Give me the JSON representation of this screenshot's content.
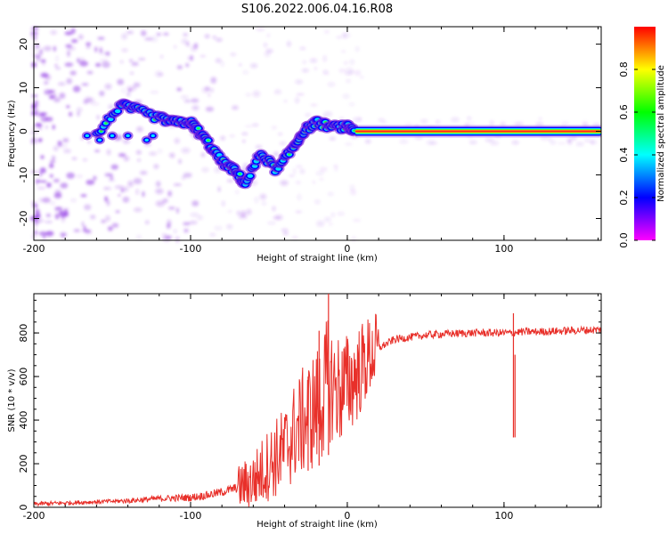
{
  "title": "S106.2022.006.04.16.R08",
  "colors": {
    "snr_line": "#e8302a",
    "frame": "#000000",
    "spectrum_ridge": [
      "#ff2020",
      "#ffe000",
      "#30ff30",
      "#00e0ff",
      "#0000ff"
    ],
    "cloud": "#8a2be2"
  },
  "chart_data": [
    {
      "type": "heatmap",
      "name": "spectrogram",
      "xlabel": "Height of straight line (km)",
      "ylabel": "Frequency (Hz)",
      "xlim": [
        -200,
        162
      ],
      "ylim": [
        -25,
        24
      ],
      "x_ticks": [
        -200,
        -100,
        0,
        100
      ],
      "y_ticks": [
        20,
        10,
        0,
        -10,
        -20
      ],
      "colorbar": {
        "label": "Normalized spectral amplitude",
        "range": [
          0,
          1
        ],
        "ticks": [
          "0.0",
          "0.2",
          "0.4",
          "0.6",
          "0.8"
        ],
        "tick_values": [
          0,
          0.2,
          0.4,
          0.6,
          0.8
        ],
        "stops": [
          "#ff00ff",
          "#8000ff",
          "#0000ff",
          "#0080ff",
          "#00ffff",
          "#00ff80",
          "#00ff00",
          "#80ff00",
          "#ffff00",
          "#ff8000",
          "#ff0000"
        ]
      },
      "ridge": [
        {
          "x": -160,
          "y": -1
        },
        {
          "x": -145,
          "y": 6
        },
        {
          "x": -135,
          "y": 5
        },
        {
          "x": -120,
          "y": 3
        },
        {
          "x": -110,
          "y": 2
        },
        {
          "x": -100,
          "y": 2
        },
        {
          "x": -95,
          "y": 0
        },
        {
          "x": -88,
          "y": -3
        },
        {
          "x": -80,
          "y": -7
        },
        {
          "x": -72,
          "y": -9
        },
        {
          "x": -65,
          "y": -12
        },
        {
          "x": -55,
          "y": -5
        },
        {
          "x": -45,
          "y": -9
        },
        {
          "x": -35,
          "y": -4
        },
        {
          "x": -28,
          "y": 0
        },
        {
          "x": -20,
          "y": 2
        },
        {
          "x": -10,
          "y": 1
        },
        {
          "x": 0,
          "y": 1
        },
        {
          "x": 5,
          "y": 0
        },
        {
          "x": 160,
          "y": 0
        }
      ]
    },
    {
      "type": "line",
      "name": "snr",
      "xlabel": "Height of straight line (km)",
      "ylabel": "SNR (10 * v/v)",
      "xlim": [
        -200,
        162
      ],
      "ylim": [
        0,
        980
      ],
      "x_ticks": [
        -200,
        -100,
        0,
        100
      ],
      "y_ticks": [
        0,
        200,
        400,
        600,
        800
      ],
      "x": [
        -200,
        -180,
        -160,
        -140,
        -120,
        -100,
        -90,
        -80,
        -70,
        -60,
        -50,
        -40,
        -35,
        -30,
        -25,
        -20,
        -15,
        -12,
        -10,
        -5,
        0,
        5,
        10,
        15,
        20,
        25,
        30,
        40,
        50,
        60,
        80,
        100,
        105,
        110,
        120,
        140,
        162
      ],
      "values": [
        15,
        20,
        25,
        30,
        40,
        45,
        55,
        70,
        90,
        120,
        200,
        260,
        330,
        380,
        420,
        450,
        520,
        600,
        560,
        540,
        560,
        600,
        650,
        700,
        730,
        750,
        770,
        780,
        790,
        795,
        800,
        800,
        800,
        805,
        805,
        810,
        815
      ],
      "spikes": [
        {
          "x": -12,
          "y": 980
        },
        {
          "x": -18,
          "y": 810
        },
        {
          "x": -25,
          "y": 600
        },
        {
          "x": 106,
          "y": 890
        },
        {
          "x": 107,
          "y": 700
        }
      ]
    }
  ]
}
